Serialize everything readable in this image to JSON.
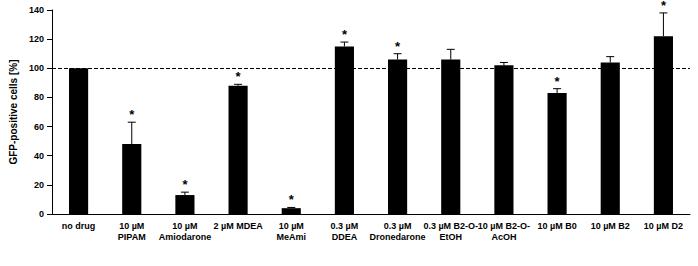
{
  "chart_data": {
    "type": "bar",
    "y_label": "GFP-positive cells [%]",
    "categories": [
      "no drug",
      "10 µM\nPIPAM",
      "10 µM\nAmiodarone",
      "2 µM MDEA",
      "10 µM\nMeAmi",
      "0.3 µM\nDDEA",
      "0.3 µM\nDronedarone",
      "0.3 µM B2-O-\nEtOH",
      "10 µM B2-O-\nAcOH",
      "10 µM B0",
      "10 µM B2",
      "10 µM D2"
    ],
    "values": [
      100,
      48,
      13,
      88,
      4,
      115,
      106,
      106,
      102,
      83,
      104,
      122
    ],
    "errors": [
      null,
      15,
      2,
      1,
      0.5,
      3,
      4,
      7,
      2,
      3,
      4,
      16
    ],
    "significant": [
      false,
      true,
      true,
      true,
      true,
      true,
      true,
      false,
      false,
      true,
      false,
      true
    ],
    "significance_label": "*",
    "reference_line": 100,
    "color": "#000000",
    "ylim": [
      0,
      140
    ],
    "yticks": [
      0,
      20,
      40,
      60,
      80,
      100,
      120,
      140
    ],
    "grid": false
  }
}
